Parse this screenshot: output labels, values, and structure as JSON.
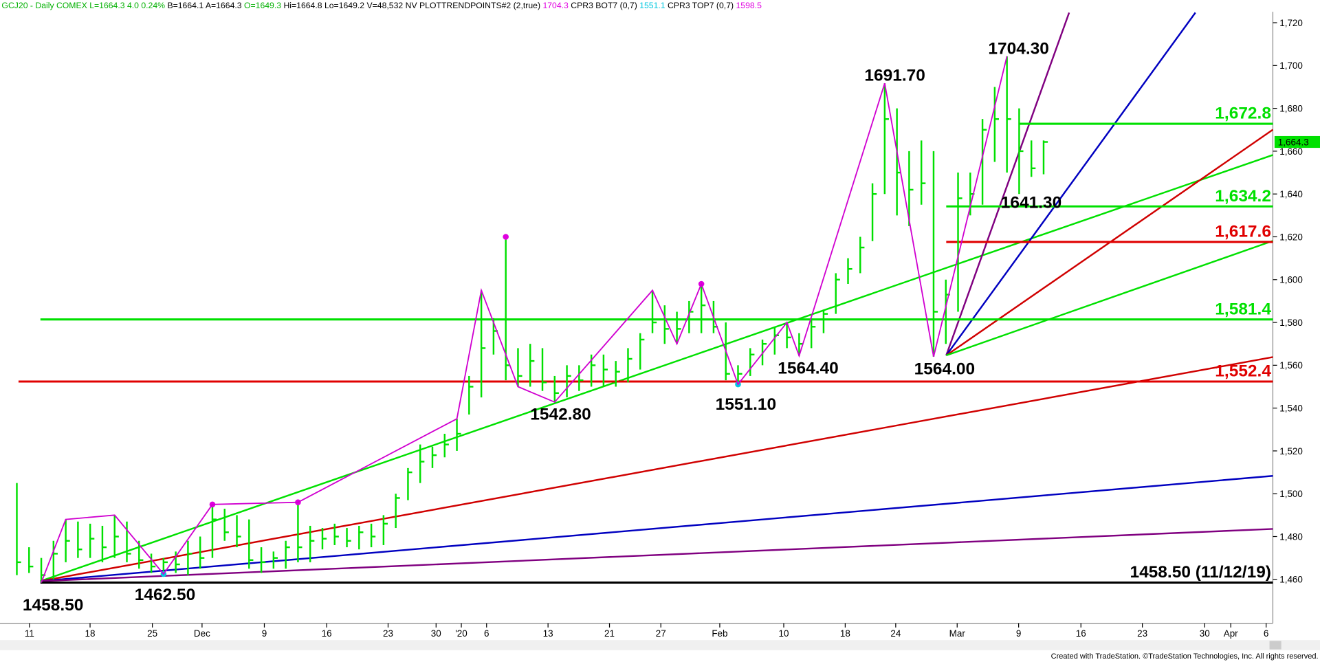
{
  "chart_data": {
    "type": "ohlc",
    "header": [
      {
        "text": "GCJ20 - Daily  COMEX  L=1664.3  4.0  0.24%",
        "color": "#00b000"
      },
      {
        "text": "  B=1664.1  A=1664.3",
        "color": "#000000"
      },
      {
        "text": "  O=1649.3",
        "color": "#00b000"
      },
      {
        "text": "  Hi=1664.8  Lo=1649.2  V=48,532  NV  PLOTTRENDPOINTS#2 (2,true)",
        "color": "#000000"
      },
      {
        "text": "  1704.3",
        "color": "#e000e0"
      },
      {
        "text": "  CPR3 BOT7 (0,7)",
        "color": "#000000"
      },
      {
        "text": "  1551.1",
        "color": "#00c8e0"
      },
      {
        "text": "  CPR3 TOP7 (0,7)",
        "color": "#000000"
      },
      {
        "text": "  1598.5",
        "color": "#e000e0"
      }
    ],
    "color": "#00e000",
    "bars": [
      [
        1505,
        1462,
        1468
      ],
      [
        1475,
        1463,
        1466
      ],
      [
        1470,
        1458.5,
        1462
      ],
      [
        1478,
        1460,
        1472
      ],
      [
        1488,
        1468,
        1478
      ],
      [
        1487,
        1470,
        1474
      ],
      [
        1486,
        1470,
        1479
      ],
      [
        1485,
        1468,
        1475
      ],
      [
        1490,
        1470,
        1480
      ],
      [
        1487,
        1468,
        1472
      ],
      [
        1478,
        1465,
        1469
      ],
      [
        1472,
        1463,
        1466
      ],
      [
        1470,
        1462.5,
        1468
      ],
      [
        1473,
        1463,
        1467
      ],
      [
        1478,
        1462,
        1472
      ],
      [
        1480,
        1465,
        1470
      ],
      [
        1495,
        1470,
        1488
      ],
      [
        1493,
        1478,
        1482
      ],
      [
        1490,
        1475,
        1480
      ],
      [
        1488,
        1465,
        1469
      ],
      [
        1475,
        1463,
        1468
      ],
      [
        1473,
        1465,
        1470
      ],
      [
        1478,
        1465,
        1475
      ],
      [
        1496,
        1468,
        1475
      ],
      [
        1485,
        1468,
        1478
      ],
      [
        1484,
        1474,
        1479
      ],
      [
        1486,
        1476,
        1480
      ],
      [
        1484,
        1475,
        1478
      ],
      [
        1485,
        1474,
        1482
      ],
      [
        1486,
        1475,
        1480
      ],
      [
        1490,
        1476,
        1486
      ],
      [
        1500,
        1484,
        1498
      ],
      [
        1512,
        1497,
        1510
      ],
      [
        1523,
        1505,
        1515
      ],
      [
        1522,
        1512,
        1518
      ],
      [
        1528,
        1517,
        1523
      ],
      [
        1535,
        1520,
        1528
      ],
      [
        1555,
        1537,
        1550
      ],
      [
        1595,
        1545,
        1568
      ],
      [
        1582,
        1565,
        1576
      ],
      [
        1620,
        1553,
        1560
      ],
      [
        1568,
        1550,
        1555
      ],
      [
        1570,
        1550,
        1562
      ],
      [
        1568,
        1548,
        1552
      ],
      [
        1555,
        1542.8,
        1547
      ],
      [
        1560,
        1545,
        1555
      ],
      [
        1560,
        1548,
        1553
      ],
      [
        1565,
        1550,
        1560
      ],
      [
        1565,
        1550,
        1558
      ],
      [
        1562,
        1550,
        1557
      ],
      [
        1568,
        1552,
        1563
      ],
      [
        1575,
        1558,
        1572
      ],
      [
        1595,
        1575,
        1580
      ],
      [
        1588,
        1570,
        1577
      ],
      [
        1585,
        1570,
        1577
      ],
      [
        1590,
        1575,
        1585
      ],
      [
        1598,
        1575,
        1588
      ],
      [
        1590,
        1575,
        1578
      ],
      [
        1580,
        1553,
        1556
      ],
      [
        1560,
        1551.1,
        1556
      ],
      [
        1568,
        1555,
        1565
      ],
      [
        1572,
        1560,
        1570
      ],
      [
        1578,
        1565,
        1574
      ],
      [
        1580,
        1568,
        1573
      ],
      [
        1575,
        1564.4,
        1570
      ],
      [
        1582,
        1568,
        1578
      ],
      [
        1586,
        1575,
        1584
      ],
      [
        1603,
        1584,
        1600
      ],
      [
        1610,
        1598,
        1605
      ],
      [
        1620,
        1603,
        1615
      ],
      [
        1645,
        1618,
        1640
      ],
      [
        1691.7,
        1640,
        1675
      ],
      [
        1680,
        1630,
        1650
      ],
      [
        1660,
        1625,
        1642
      ],
      [
        1665,
        1635,
        1645
      ],
      [
        1660,
        1564,
        1585
      ],
      [
        1600,
        1570,
        1593
      ],
      [
        1650,
        1585,
        1638
      ],
      [
        1650,
        1630,
        1640
      ],
      [
        1675,
        1635,
        1670
      ],
      [
        1690,
        1655,
        1675
      ],
      [
        1704.3,
        1650,
        1675
      ],
      [
        1680,
        1640,
        1660
      ],
      [
        1665,
        1648,
        1652
      ],
      [
        1665,
        1649.2,
        1664.3
      ]
    ],
    "xticks": [
      "11",
      "18",
      "25",
      "Dec",
      "9",
      "16",
      "23",
      "30",
      "'20",
      "6",
      "13",
      "21",
      "27",
      "Feb",
      "10",
      "18",
      "24",
      "Mar",
      "9",
      "16",
      "23",
      "30",
      "Apr",
      "6"
    ],
    "ylim": [
      1439.5,
      1725.1
    ],
    "yticks": [
      {
        "value": 1460,
        "label": "1,460"
      },
      {
        "value": 1480,
        "label": "1,480"
      },
      {
        "value": 1500,
        "label": "1,500"
      },
      {
        "value": 1520,
        "label": "1,520"
      },
      {
        "value": 1540,
        "label": "1,540"
      },
      {
        "value": 1560,
        "label": "1,560"
      },
      {
        "value": 1580,
        "label": "1,580"
      },
      {
        "value": 1600,
        "label": "1,600"
      },
      {
        "value": 1620,
        "label": "1,620"
      },
      {
        "value": 1640,
        "label": "1,640"
      },
      {
        "value": 1660,
        "label": "1,660"
      },
      {
        "value": 1680,
        "label": "1,680"
      },
      {
        "value": 1700,
        "label": "1,700"
      },
      {
        "value": 1720,
        "label": "1,720"
      }
    ],
    "levels": [
      {
        "value": 1672.8,
        "label": "1,672.8",
        "color": "#00e000"
      },
      {
        "value": 1634.2,
        "label": "1,634.2",
        "color": "#00e000"
      },
      {
        "value": 1617.6,
        "label": "1,617.6",
        "color": "#e00000"
      },
      {
        "value": 1581.4,
        "label": "1,581.4",
        "color": "#00e000"
      },
      {
        "value": 1552.4,
        "label": "1,552.4",
        "color": "#e00000"
      },
      {
        "value": 1458.5,
        "label": "1458.50 (11/12/19)",
        "color": "#000000"
      }
    ],
    "annotations": [
      {
        "value": 1704.3,
        "label": "1704.30"
      },
      {
        "value": 1691.7,
        "label": "1691.70"
      },
      {
        "value": 1641.3,
        "label": "1641.30"
      },
      {
        "value": 1564.4,
        "label": "1564.40"
      },
      {
        "value": 1564,
        "label": "1564.00"
      },
      {
        "value": 1551.1,
        "label": "1551.10"
      },
      {
        "value": 1542.8,
        "label": "1542.80"
      },
      {
        "value": 1462.5,
        "label": "1462.50"
      },
      {
        "value": 1458.5,
        "label": "1458.50"
      }
    ],
    "last_price": {
      "value": 1664.3,
      "label": "1,664.3"
    },
    "footer": "Created with TradeStation. ©TradeStation Technologies, Inc. All rights reserved."
  }
}
